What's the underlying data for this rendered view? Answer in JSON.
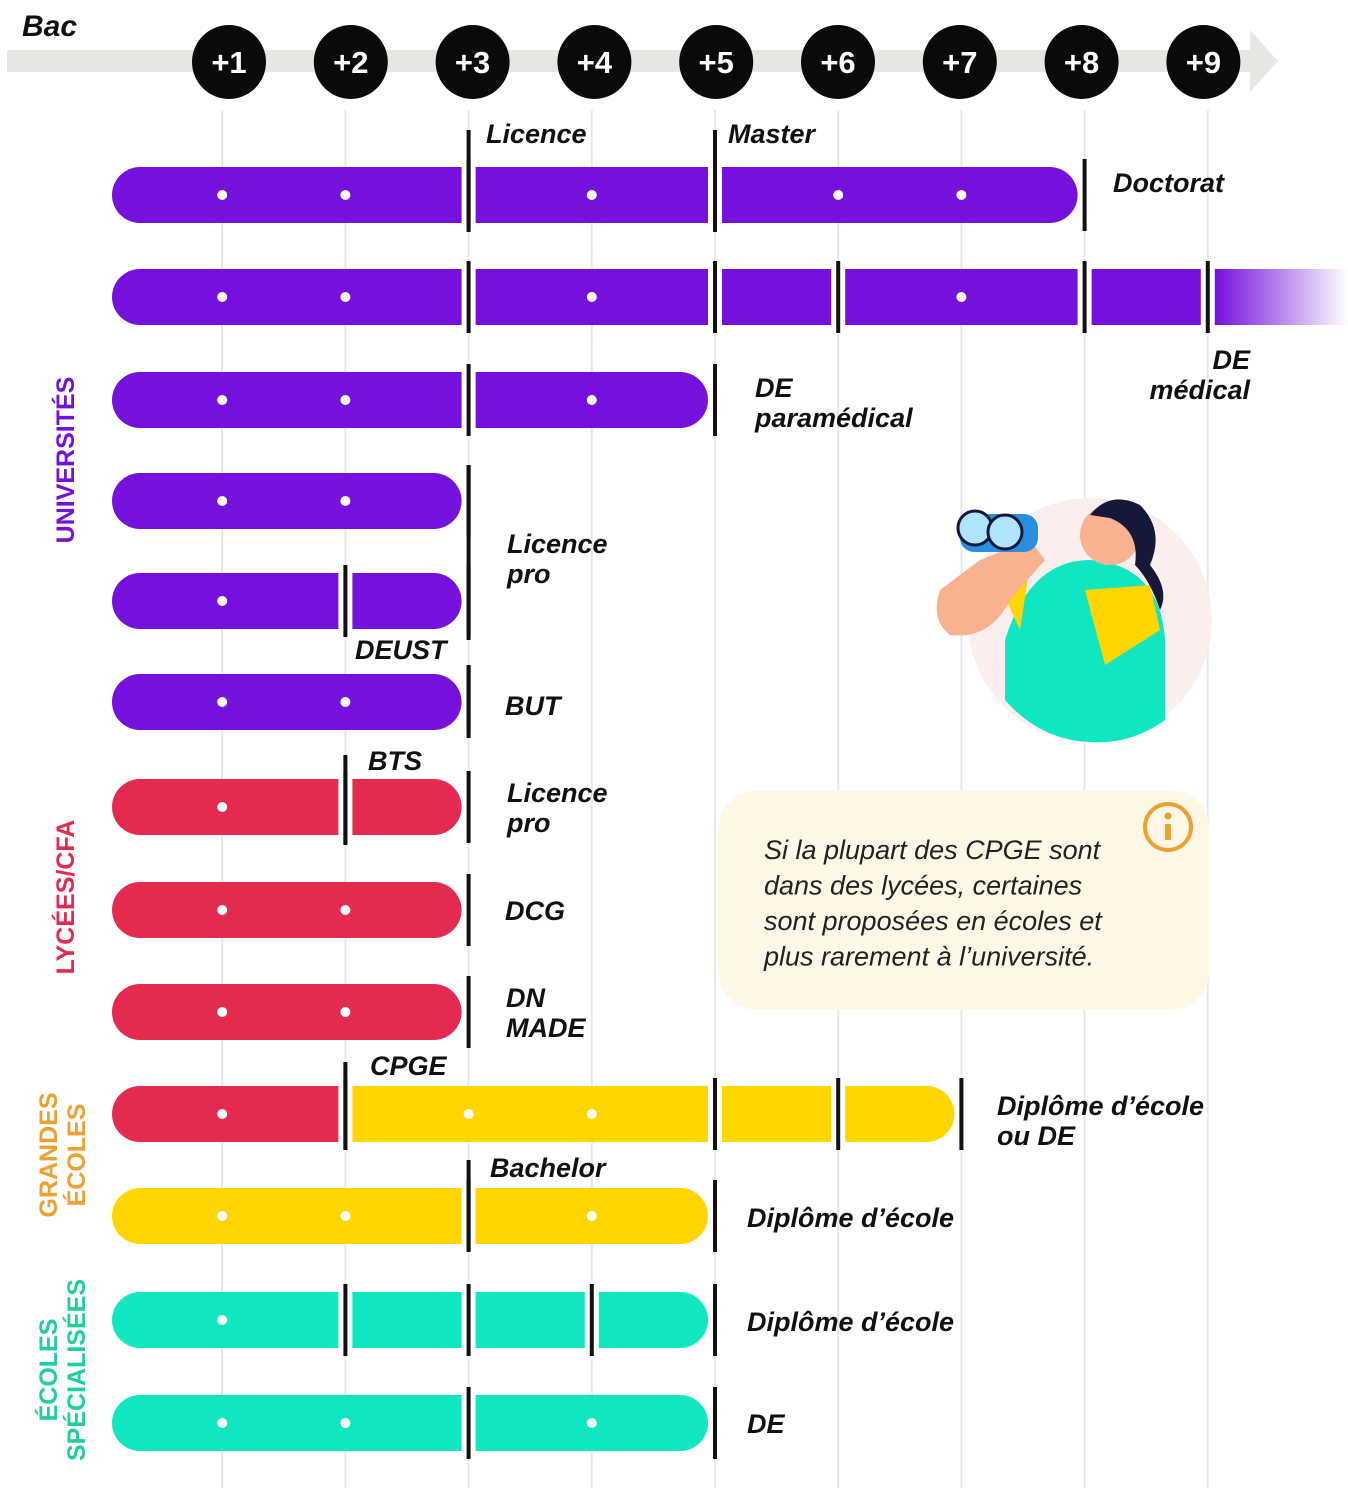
{
  "timeline": {
    "start": "Bac",
    "steps": [
      "+1",
      "+2",
      "+3",
      "+4",
      "+5",
      "+6",
      "+7",
      "+8",
      "+9"
    ]
  },
  "sections": [
    [
      "UNIVERSITÉS"
    ],
    [
      "LYCÉES/CFA"
    ],
    [
      "GRANDES",
      "ÉCOLES"
    ],
    [
      "ÉCOLES",
      "SPÉCIALISÉES"
    ]
  ],
  "labels": [
    [
      "Licence"
    ],
    [
      "Master"
    ],
    [
      "Doctorat"
    ],
    [
      "DE",
      "médical"
    ],
    [
      "DE",
      "paramédical"
    ],
    [
      "Licence",
      "pro"
    ],
    [
      "DEUST"
    ],
    [
      "BUT"
    ],
    [
      "BTS"
    ],
    [
      "Licence",
      "pro"
    ],
    [
      "DCG"
    ],
    [
      "DN",
      "MADE"
    ],
    [
      "CPGE"
    ],
    [
      "Diplôme d’école",
      "ou DE"
    ],
    [
      "Bachelor"
    ],
    [
      "Diplôme d’école"
    ],
    [
      "Diplôme d’école"
    ],
    [
      "DE"
    ]
  ],
  "note": [
    "Si la plupart des CPGE sont",
    "dans des lycées, certaines",
    "sont proposées en écoles et",
    "plus rarement à l’université."
  ]
}
